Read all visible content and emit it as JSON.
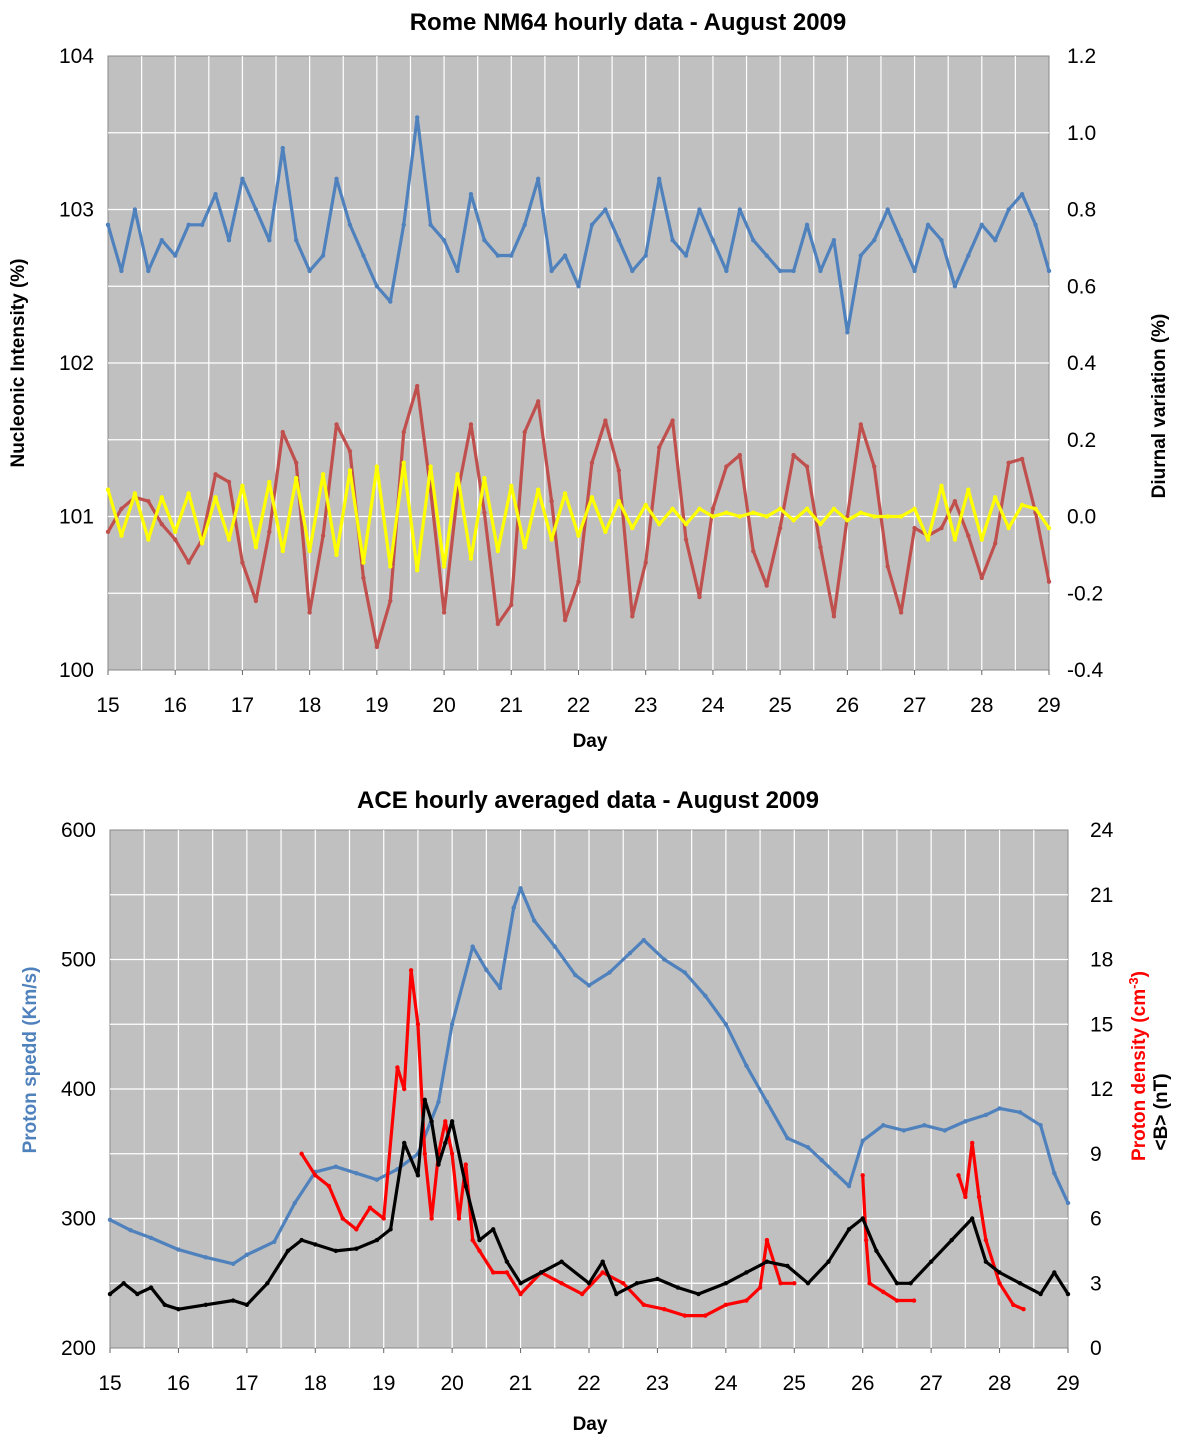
{
  "chart_data": [
    {
      "type": "line",
      "title": "Rome NM64 hourly data - August 2009",
      "xlabel": "Day",
      "ylabel": "Nucleonic Intensity (%)",
      "y2label": "Diurnal variation (%)",
      "xlim": [
        15,
        29
      ],
      "ylim": [
        100,
        104
      ],
      "y2lim": [
        -0.4,
        1.2
      ],
      "xticks": [
        "15",
        "16",
        "17",
        "18",
        "19",
        "20",
        "21",
        "22",
        "23",
        "24",
        "25",
        "26",
        "27",
        "28",
        "29"
      ],
      "yticks": [
        "100",
        "101",
        "102",
        "103",
        "104"
      ],
      "y2ticks": [
        "-0.4",
        "-0.2",
        "0.0",
        "0.2",
        "0.4",
        "0.6",
        "0.8",
        "1.0",
        "1.2"
      ],
      "grid": true,
      "plot_background": "#c0c0c0",
      "series": [
        {
          "color": "#4f81bd",
          "axis": "left",
          "x": [
            15.0,
            15.2,
            15.4,
            15.6,
            15.8,
            16.0,
            16.2,
            16.4,
            16.6,
            16.8,
            17.0,
            17.2,
            17.4,
            17.6,
            17.8,
            18.0,
            18.2,
            18.4,
            18.6,
            18.8,
            19.0,
            19.2,
            19.4,
            19.6,
            19.8,
            20.0,
            20.2,
            20.4,
            20.6,
            20.8,
            21.0,
            21.2,
            21.4,
            21.6,
            21.8,
            22.0,
            22.2,
            22.4,
            22.6,
            22.8,
            23.0,
            23.2,
            23.4,
            23.6,
            23.8,
            24.0,
            24.2,
            24.4,
            24.6,
            24.8,
            25.0,
            25.2,
            25.4,
            25.6,
            25.8,
            26.0,
            26.2,
            26.4,
            26.6,
            26.8,
            27.0,
            27.2,
            27.4,
            27.6,
            27.8,
            28.0,
            28.2,
            28.4,
            28.6,
            28.8,
            29.0
          ],
          "values": [
            102.9,
            102.6,
            103.0,
            102.6,
            102.8,
            102.7,
            102.9,
            102.9,
            103.1,
            102.8,
            103.2,
            103.0,
            102.8,
            103.4,
            102.8,
            102.6,
            102.7,
            103.2,
            102.9,
            102.7,
            102.5,
            102.4,
            102.9,
            103.6,
            102.9,
            102.8,
            102.6,
            103.1,
            102.8,
            102.7,
            102.7,
            102.9,
            103.2,
            102.6,
            102.7,
            102.5,
            102.9,
            103.0,
            102.8,
            102.6,
            102.7,
            103.2,
            102.8,
            102.7,
            103.0,
            102.8,
            102.6,
            103.0,
            102.8,
            102.7,
            102.6,
            102.6,
            102.9,
            102.6,
            102.8,
            102.2,
            102.7,
            102.8,
            103.0,
            102.8,
            102.6,
            102.9,
            102.8,
            102.5,
            102.7,
            102.9,
            102.8,
            103.0,
            103.1,
            102.9,
            102.6
          ]
        },
        {
          "color": "#c0504d",
          "axis": "right",
          "x": [
            15.0,
            15.2,
            15.4,
            15.6,
            15.8,
            16.0,
            16.2,
            16.4,
            16.6,
            16.8,
            17.0,
            17.2,
            17.4,
            17.6,
            17.8,
            18.0,
            18.2,
            18.4,
            18.6,
            18.8,
            19.0,
            19.2,
            19.4,
            19.6,
            19.8,
            20.0,
            20.2,
            20.4,
            20.6,
            20.8,
            21.0,
            21.2,
            21.4,
            21.6,
            21.8,
            22.0,
            22.2,
            22.4,
            22.6,
            22.8,
            23.0,
            23.2,
            23.4,
            23.6,
            23.8,
            24.0,
            24.2,
            24.4,
            24.6,
            24.8,
            25.0,
            25.2,
            25.4,
            25.6,
            25.8,
            26.0,
            26.2,
            26.4,
            26.6,
            26.8,
            27.0,
            27.2,
            27.4,
            27.6,
            27.8,
            28.0,
            28.2,
            28.4,
            28.6,
            28.8,
            29.0
          ],
          "values": [
            -0.04,
            0.02,
            0.05,
            0.04,
            -0.02,
            -0.06,
            -0.12,
            -0.06,
            0.11,
            0.09,
            -0.12,
            -0.22,
            -0.04,
            0.22,
            0.14,
            -0.25,
            -0.05,
            0.24,
            0.17,
            -0.16,
            -0.34,
            -0.22,
            0.22,
            0.34,
            0.07,
            -0.25,
            0.06,
            0.24,
            0.01,
            -0.28,
            -0.23,
            0.22,
            0.3,
            0.04,
            -0.27,
            -0.17,
            0.14,
            0.25,
            0.12,
            -0.26,
            -0.12,
            0.18,
            0.25,
            -0.06,
            -0.21,
            0.02,
            0.13,
            0.16,
            -0.09,
            -0.18,
            -0.03,
            0.16,
            0.13,
            -0.08,
            -0.26,
            0.0,
            0.24,
            0.13,
            -0.13,
            -0.25,
            -0.03,
            -0.05,
            -0.03,
            0.04,
            -0.05,
            -0.16,
            -0.07,
            0.14,
            0.15,
            0.01,
            -0.17
          ]
        },
        {
          "color": "#ffff00",
          "axis": "right",
          "x": [
            15.0,
            15.2,
            15.4,
            15.6,
            15.8,
            16.0,
            16.2,
            16.4,
            16.6,
            16.8,
            17.0,
            17.2,
            17.4,
            17.6,
            17.8,
            18.0,
            18.2,
            18.4,
            18.6,
            18.8,
            19.0,
            19.2,
            19.4,
            19.6,
            19.8,
            20.0,
            20.2,
            20.4,
            20.6,
            20.8,
            21.0,
            21.2,
            21.4,
            21.6,
            21.8,
            22.0,
            22.2,
            22.4,
            22.6,
            22.8,
            23.0,
            23.2,
            23.4,
            23.6,
            23.8,
            24.0,
            24.2,
            24.4,
            24.6,
            24.8,
            25.0,
            25.2,
            25.4,
            25.6,
            25.8,
            26.0,
            26.2,
            26.4,
            26.6,
            26.8,
            27.0,
            27.2,
            27.4,
            27.6,
            27.8,
            28.0,
            28.2,
            28.4,
            28.6,
            28.8,
            29.0
          ],
          "values": [
            0.07,
            -0.05,
            0.06,
            -0.06,
            0.05,
            -0.04,
            0.06,
            -0.07,
            0.05,
            -0.06,
            0.08,
            -0.08,
            0.09,
            -0.09,
            0.1,
            -0.09,
            0.11,
            -0.1,
            0.12,
            -0.12,
            0.13,
            -0.13,
            0.14,
            -0.14,
            0.13,
            -0.13,
            0.11,
            -0.11,
            0.1,
            -0.09,
            0.08,
            -0.08,
            0.07,
            -0.06,
            0.06,
            -0.05,
            0.05,
            -0.04,
            0.04,
            -0.03,
            0.03,
            -0.02,
            0.02,
            -0.02,
            0.02,
            0.0,
            0.01,
            0.0,
            0.01,
            0.0,
            0.02,
            -0.01,
            0.02,
            -0.02,
            0.02,
            -0.01,
            0.01,
            0.0,
            0.0,
            0.0,
            0.02,
            -0.06,
            0.08,
            -0.06,
            0.07,
            -0.06,
            0.05,
            -0.03,
            0.03,
            0.02,
            -0.03
          ]
        }
      ]
    },
    {
      "type": "line",
      "title": "ACE hourly averaged data - August 2009",
      "xlabel": "Day",
      "ylabel": "Proton spedd (Km/s)",
      "y2label_red": "Proton density (cm",
      "y2label_sup": "-3",
      "y2label_close": ")",
      "y2label_black": "<B> (nT)",
      "xlim": [
        15,
        29
      ],
      "ylim": [
        200,
        600
      ],
      "y2lim": [
        0,
        24
      ],
      "xticks": [
        "15",
        "16",
        "17",
        "18",
        "19",
        "20",
        "21",
        "22",
        "23",
        "24",
        "25",
        "26",
        "27",
        "28",
        "29"
      ],
      "yticks": [
        "200",
        "300",
        "400",
        "500",
        "600"
      ],
      "y2ticks": [
        "0",
        "3",
        "6",
        "9",
        "12",
        "15",
        "18",
        "21",
        "24"
      ],
      "grid": true,
      "plot_background": "#c0c0c0",
      "series": [
        {
          "color": "#4f81bd",
          "axis": "left",
          "x": [
            15.0,
            15.3,
            15.6,
            16.0,
            16.4,
            16.8,
            17.0,
            17.4,
            17.7,
            18.0,
            18.3,
            18.6,
            18.9,
            19.2,
            19.5,
            19.8,
            20.0,
            20.3,
            20.5,
            20.7,
            20.9,
            21.0,
            21.2,
            21.5,
            21.8,
            22.0,
            22.3,
            22.6,
            22.8,
            23.1,
            23.4,
            23.7,
            24.0,
            24.3,
            24.6,
            24.9,
            25.2,
            25.4,
            25.6,
            25.8,
            26.0,
            26.3,
            26.6,
            26.9,
            27.2,
            27.5,
            27.8,
            28.0,
            28.3,
            28.6,
            28.8,
            29.0
          ],
          "values": [
            299,
            291,
            285,
            276,
            270,
            265,
            272,
            282,
            312,
            336,
            340,
            335,
            330,
            338,
            350,
            390,
            450,
            510,
            492,
            478,
            540,
            555,
            530,
            510,
            488,
            480,
            490,
            505,
            515,
            500,
            490,
            472,
            450,
            418,
            390,
            362,
            355,
            345,
            335,
            325,
            360,
            372,
            368,
            372,
            368,
            375,
            380,
            385,
            382,
            372,
            335,
            312
          ]
        },
        {
          "color": "#ff0000",
          "axis": "right",
          "x": [
            17.8,
            18.0,
            18.2,
            18.4,
            18.6,
            18.8,
            19.0,
            19.2,
            19.3,
            19.4,
            19.5,
            19.6,
            19.7,
            19.8,
            19.9,
            20.0,
            20.1,
            20.2,
            20.3,
            20.4,
            20.6,
            20.8,
            21.0,
            21.3,
            21.6,
            21.9,
            22.2,
            22.5,
            22.8,
            23.1,
            23.4,
            23.7,
            24.0,
            24.3,
            24.5,
            24.6,
            24.8,
            25.0
          ],
          "values": [
            9,
            8,
            7.5,
            6,
            5.5,
            6.5,
            6,
            13,
            12,
            17.5,
            15,
            9,
            6,
            9,
            10.5,
            9,
            6,
            8.5,
            5,
            4.5,
            3.5,
            3.5,
            2.5,
            3.5,
            3,
            2.5,
            3.5,
            3,
            2,
            1.8,
            1.5,
            1.5,
            2,
            2.2,
            2.8,
            5,
            3,
            3
          ]
        },
        {
          "color": "#ff0000",
          "axis": "right",
          "x": [
            26.0,
            26.05,
            26.1,
            26.3,
            26.5,
            26.75
          ],
          "values": [
            8,
            5,
            3,
            2.6,
            2.2,
            2.2
          ]
        },
        {
          "color": "#ff0000",
          "axis": "right",
          "x": [
            27.4,
            27.5,
            27.6,
            27.7,
            27.8,
            28.0,
            28.2,
            28.35
          ],
          "values": [
            8,
            7,
            9.5,
            7,
            5,
            3,
            2,
            1.8
          ]
        },
        {
          "color": "#000000",
          "axis": "right",
          "x": [
            15.0,
            15.2,
            15.4,
            15.6,
            15.8,
            16.0,
            16.4,
            16.8,
            17.0,
            17.3,
            17.6,
            17.8,
            18.0,
            18.3,
            18.6,
            18.9,
            19.1,
            19.3,
            19.5,
            19.6,
            19.7,
            19.8,
            19.9,
            20.0,
            20.2,
            20.4,
            20.6,
            20.8,
            21.0,
            21.3,
            21.6,
            22.0,
            22.2,
            22.4,
            22.7,
            23.0,
            23.3,
            23.6,
            24.0,
            24.3,
            24.6,
            24.9,
            25.2,
            25.5,
            25.8,
            26.0,
            26.2,
            26.5,
            26.7,
            27.0,
            27.3,
            27.6,
            27.8,
            28.0,
            28.3,
            28.6,
            28.8,
            29.0
          ],
          "values": [
            2.5,
            3,
            2.5,
            2.8,
            2.0,
            1.8,
            2.0,
            2.2,
            2.0,
            3.0,
            4.5,
            5.0,
            4.8,
            4.5,
            4.6,
            5.0,
            5.5,
            9.5,
            8.0,
            11.5,
            10.5,
            8.5,
            9.5,
            10.5,
            7.5,
            5.0,
            5.5,
            4.0,
            3.0,
            3.5,
            4.0,
            3.0,
            4.0,
            2.5,
            3.0,
            3.2,
            2.8,
            2.5,
            3.0,
            3.5,
            4.0,
            3.8,
            3.0,
            4.0,
            5.5,
            6.0,
            4.5,
            3.0,
            3.0,
            4.0,
            5.0,
            6.0,
            4.0,
            3.5,
            3.0,
            2.5,
            3.5,
            2.5
          ]
        }
      ]
    }
  ]
}
